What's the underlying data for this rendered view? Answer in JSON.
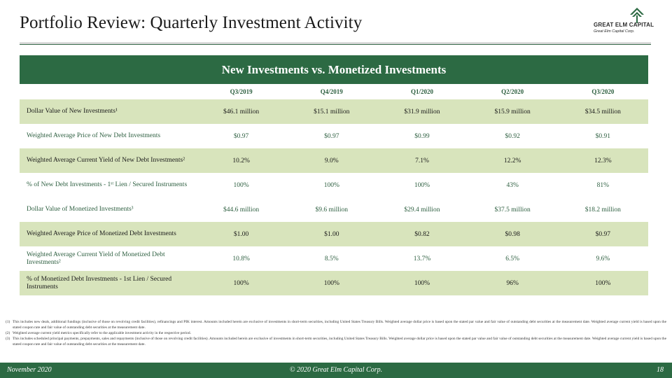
{
  "title": "Portfolio Review: Quarterly Investment Activity",
  "logo": {
    "name": "GREAT ELM CAPITAL",
    "sub": "Great Elm Capital Corp."
  },
  "banner": "New Investments vs. Monetized Investments",
  "table": {
    "headers": [
      "Q3/2019",
      "Q4/2019",
      "Q1/2020",
      "Q2/2020",
      "Q3/2020"
    ],
    "rows": [
      {
        "label": "Dollar Value of New Investments¹",
        "values": [
          "$46.1 million",
          "$15.1 million",
          "$31.9 million",
          "$15.9 million",
          "$34.5 million"
        ]
      },
      {
        "label": "Weighted Average Price of New Debt Investments",
        "values": [
          "$0.97",
          "$0.97",
          "$0.99",
          "$0.92",
          "$0.91"
        ]
      },
      {
        "label": "Weighted Average Current Yield of New Debt Investments²",
        "values": [
          "10.2%",
          "9.0%",
          "7.1%",
          "12.2%",
          "12.3%"
        ]
      },
      {
        "label": "% of New Debt Investments - 1ˢᵗ Lien / Secured Instruments",
        "values": [
          "100%",
          "100%",
          "100%",
          "43%",
          "81%"
        ]
      },
      {
        "label": "Dollar Value of Monetized Investments³",
        "values": [
          "$44.6 million",
          "$9.6 million",
          "$29.4 million",
          "$37.5 million",
          "$18.2 million"
        ]
      },
      {
        "label": "Weighted Average Price of Monetized Debt Investments",
        "values": [
          "$1.00",
          "$1.00",
          "$0.82",
          "$0.98",
          "$0.97"
        ]
      },
      {
        "label": "Weighted Average Current Yield of Monetized Debt Investments²",
        "values": [
          "10.8%",
          "8.5%",
          "13.7%",
          "6.5%",
          "9.6%"
        ]
      },
      {
        "label": "% of Monetized Debt Investments - 1st Lien / Secured Instruments",
        "values": [
          "100%",
          "100%",
          "100%",
          "96%",
          "100%"
        ]
      }
    ]
  },
  "footnotes": [
    {
      "num": "(1)",
      "text": "This includes new deals, additional fundings (inclusive of those on revolving credit facilities), refinancings and PIK interest. Amounts included herein are exclusive of investments in short-term securities, including United States Treasury Bills. Weighted average dollar price is based upon the stated par value and fair value of outstanding debt securities at the measurement date. Weighted average current yield is based upon the stated coupon rate and fair value of outstanding debt securities at the measurement date."
    },
    {
      "num": "(2)",
      "text": "Weighted average current yield metrics specifically refer to the applicable investment activity in the respective period."
    },
    {
      "num": "(3)",
      "text": "This includes scheduled principal payments, prepayments, sales and repayments (inclusive of those on revolving credit facilities). Amounts included herein are exclusive of investments in short-term securities, including United States Treasury Bills. Weighted average dollar price is based upon the stated par value and fair value of outstanding debt securities at the measurement date. Weighted average current yield is based upon the stated coupon rate and fair value of outstanding debt securities at the measurement date."
    }
  ],
  "footer": {
    "date": "November 2020",
    "copyright": "© 2020 Great Elm Capital Corp.",
    "page": "18"
  },
  "colors": {
    "brand_green": "#2c6a43",
    "band_green": "#d8e4bc"
  }
}
